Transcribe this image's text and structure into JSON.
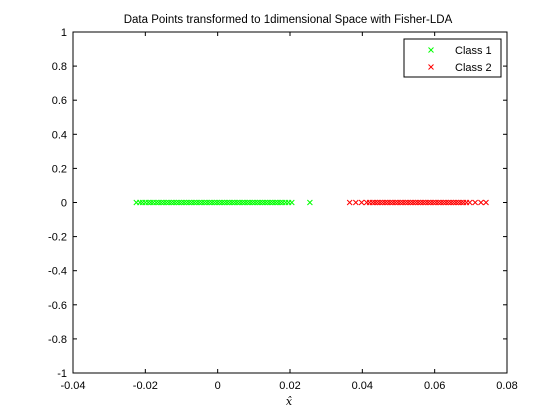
{
  "chart_data": {
    "type": "scatter",
    "title": "Data Points transformed to 1dimensional Space with Fisher-LDA",
    "xlabel": "x̂",
    "ylabel": "",
    "xlim": [
      -0.04,
      0.08
    ],
    "ylim": [
      -1,
      1
    ],
    "xticks": [
      -0.04,
      -0.02,
      0,
      0.02,
      0.04,
      0.06,
      0.08
    ],
    "xtick_labels": [
      "-0.04",
      "-0.02",
      "0",
      "0.02",
      "0.04",
      "0.06",
      "0.08"
    ],
    "yticks": [
      -1,
      -0.8,
      -0.6,
      -0.4,
      -0.2,
      0,
      0.2,
      0.4,
      0.6,
      0.8,
      1
    ],
    "ytick_labels": [
      "-1",
      "-0.8",
      "-0.6",
      "-0.4",
      "-0.2",
      "0",
      "0.2",
      "0.4",
      "0.6",
      "0.8",
      "1"
    ],
    "grid": false,
    "legend_position": "top-right",
    "marker": "x",
    "series": [
      {
        "name": "Class 1",
        "color": "#00ff00",
        "x": [
          -0.0225,
          -0.0215,
          -0.0208,
          -0.02,
          -0.0192,
          -0.0185,
          -0.0178,
          -0.017,
          -0.0163,
          -0.0156,
          -0.0149,
          -0.0142,
          -0.0135,
          -0.0128,
          -0.0121,
          -0.0114,
          -0.0107,
          -0.01,
          -0.0093,
          -0.0086,
          -0.0079,
          -0.0072,
          -0.0065,
          -0.0058,
          -0.0051,
          -0.0044,
          -0.0037,
          -0.003,
          -0.0023,
          -0.0016,
          -0.0009,
          -0.0002,
          0.0005,
          0.0012,
          0.0019,
          0.0026,
          0.0033,
          0.004,
          0.0047,
          0.0054,
          0.0061,
          0.0068,
          0.0075,
          0.0082,
          0.0089,
          0.0096,
          0.0103,
          0.011,
          0.0117,
          0.0124,
          0.0131,
          0.0138,
          0.0145,
          0.0152,
          0.0159,
          0.0166,
          0.0173,
          0.018,
          0.0188,
          0.0196,
          0.0205,
          0.0255
        ],
        "y": [
          0,
          0,
          0,
          0,
          0,
          0,
          0,
          0,
          0,
          0,
          0,
          0,
          0,
          0,
          0,
          0,
          0,
          0,
          0,
          0,
          0,
          0,
          0,
          0,
          0,
          0,
          0,
          0,
          0,
          0,
          0,
          0,
          0,
          0,
          0,
          0,
          0,
          0,
          0,
          0,
          0,
          0,
          0,
          0,
          0,
          0,
          0,
          0,
          0,
          0,
          0,
          0,
          0,
          0,
          0,
          0,
          0,
          0,
          0,
          0,
          0,
          0
        ]
      },
      {
        "name": "Class 2",
        "color": "#ff0000",
        "x": [
          0.0365,
          0.0382,
          0.0398,
          0.0412,
          0.042,
          0.0428,
          0.0435,
          0.0442,
          0.0449,
          0.0456,
          0.0463,
          0.047,
          0.0477,
          0.0484,
          0.0491,
          0.0498,
          0.0505,
          0.0512,
          0.0519,
          0.0526,
          0.0533,
          0.054,
          0.0547,
          0.0554,
          0.0561,
          0.0568,
          0.0575,
          0.0582,
          0.0589,
          0.0596,
          0.0603,
          0.061,
          0.0617,
          0.0624,
          0.0631,
          0.0638,
          0.0645,
          0.0652,
          0.0659,
          0.0666,
          0.0673,
          0.068,
          0.0688,
          0.0697,
          0.0712,
          0.0728,
          0.0742
        ],
        "y": [
          0,
          0,
          0,
          0,
          0,
          0,
          0,
          0,
          0,
          0,
          0,
          0,
          0,
          0,
          0,
          0,
          0,
          0,
          0,
          0,
          0,
          0,
          0,
          0,
          0,
          0,
          0,
          0,
          0,
          0,
          0,
          0,
          0,
          0,
          0,
          0,
          0,
          0,
          0,
          0,
          0,
          0,
          0,
          0,
          0,
          0,
          0
        ]
      }
    ]
  }
}
